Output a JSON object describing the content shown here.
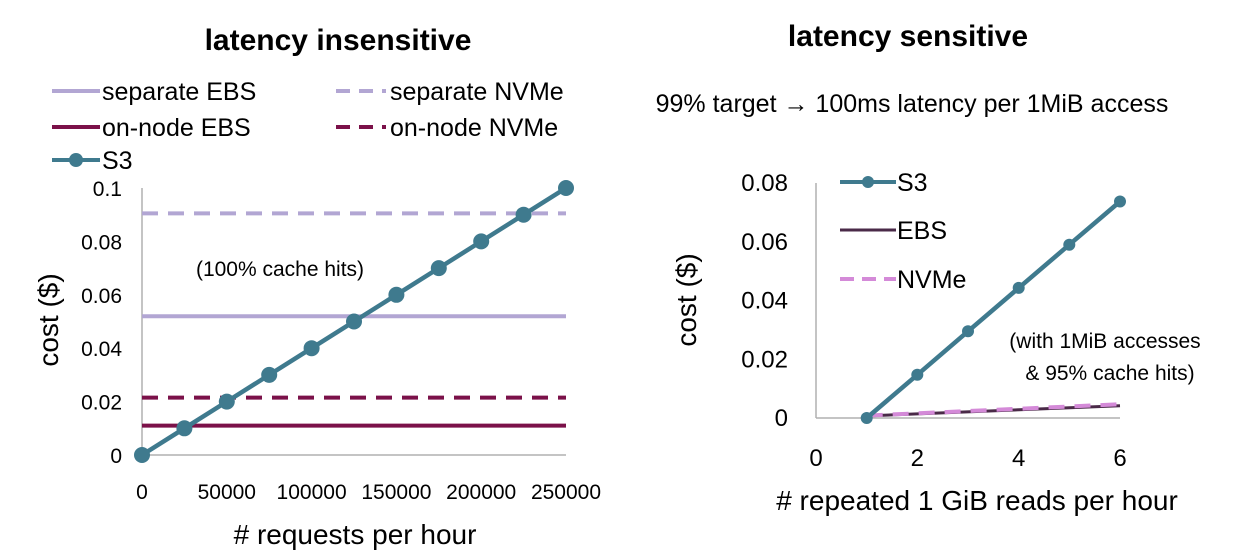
{
  "chart_data": [
    {
      "type": "line",
      "title": "latency insensitive",
      "xlabel": "# requests per hour",
      "ylabel": "cost ($)",
      "xlim": [
        0,
        250000
      ],
      "ylim": [
        0,
        0.1
      ],
      "x_ticks": [
        "0",
        "50000",
        "100000",
        "150000",
        "200000",
        "250000"
      ],
      "y_ticks": [
        "0",
        "0.02",
        "0.04",
        "0.06",
        "0.08",
        "0.1"
      ],
      "annotation": "(100% cache hits)",
      "legend_placement": "top",
      "series": [
        {
          "name": "separate EBS",
          "style": "solid",
          "color": "#b2a6d3",
          "x": [
            0,
            250000
          ],
          "y": [
            0.052,
            0.052
          ]
        },
        {
          "name": "separate NVMe",
          "style": "dashed",
          "color": "#b2a6d3",
          "x": [
            0,
            250000
          ],
          "y": [
            0.0905,
            0.0905
          ]
        },
        {
          "name": "on-node EBS",
          "style": "solid",
          "color": "#7b1149",
          "x": [
            0,
            250000
          ],
          "y": [
            0.011,
            0.011
          ]
        },
        {
          "name": "on-node NVMe",
          "style": "dashed",
          "color": "#7b1149",
          "x": [
            0,
            250000
          ],
          "y": [
            0.0215,
            0.0215
          ]
        },
        {
          "name": "S3",
          "style": "solid-markers",
          "color": "#3f7a8e",
          "x": [
            0,
            25000,
            50000,
            75000,
            100000,
            125000,
            150000,
            175000,
            200000,
            225000,
            250000
          ],
          "y": [
            0,
            0.01,
            0.02,
            0.03,
            0.04,
            0.05,
            0.06,
            0.07,
            0.08,
            0.09,
            0.1
          ]
        }
      ]
    },
    {
      "type": "line",
      "title": "latency sensitive",
      "subtitle": "99% target → 100ms latency per 1MiB access",
      "xlabel": "# repeated 1 GiB reads per hour",
      "ylabel": "cost ($)",
      "xlim": [
        0,
        6
      ],
      "ylim": [
        0,
        0.08
      ],
      "x_ticks": [
        "0",
        "2",
        "4",
        "6"
      ],
      "y_ticks": [
        "0",
        "0.02",
        "0.04",
        "0.06",
        "0.08"
      ],
      "annotation_lines": [
        "(with 1MiB accesses",
        "& 95% cache hits)"
      ],
      "legend_placement": "top-left",
      "series": [
        {
          "name": "S3",
          "style": "solid-markers",
          "color": "#3f7a8e",
          "x": [
            1,
            2,
            3,
            4,
            5,
            6
          ],
          "y": [
            0,
            0.0147,
            0.0295,
            0.0443,
            0.059,
            0.0737
          ]
        },
        {
          "name": "EBS",
          "style": "solid",
          "color": "#4a2a48",
          "x": [
            1,
            6
          ],
          "y": [
            0.0007,
            0.0042
          ]
        },
        {
          "name": "NVMe",
          "style": "dashed",
          "color": "#d48ad8",
          "x": [
            1,
            6
          ],
          "y": [
            0.0008,
            0.0047
          ]
        }
      ]
    }
  ]
}
